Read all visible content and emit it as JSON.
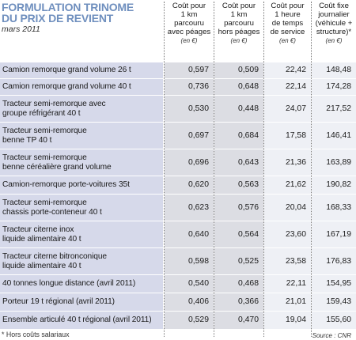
{
  "title": {
    "line1": "FORMULATION TRINOME",
    "line2": "DU PRIX DE REVIENT",
    "date": "mars 2011"
  },
  "columns": [
    {
      "l1": "Coût pour",
      "l2": "1 km",
      "l3": "parcouru",
      "l4": "avec péages",
      "unit": "(en €)"
    },
    {
      "l1": "Coût pour",
      "l2": "1 km",
      "l3": "parcouru",
      "l4": "hors péages",
      "unit": "(en €)"
    },
    {
      "l1": "Coût pour",
      "l2": "1 heure",
      "l3": "de temps",
      "l4": "de service",
      "unit": "(en €)"
    },
    {
      "l1": "Coût fixe",
      "l2": "journalier",
      "l3": "(véhicule +",
      "l4": "structure)*",
      "unit": "(en €)"
    }
  ],
  "rows": [
    {
      "label1": "Camion remorque grand volume 26 t",
      "label2": "",
      "v1": "0,597",
      "v2": "0,509",
      "v3": "22,42",
      "v4": "148,48"
    },
    {
      "label1": "Camion remorque grand volume 40 t",
      "label2": "",
      "v1": "0,736",
      "v2": "0,648",
      "v3": "22,14",
      "v4": "174,28"
    },
    {
      "label1": "Tracteur semi-remorque avec",
      "label2": "groupe réfrigérant 40 t",
      "v1": "0,530",
      "v2": "0,448",
      "v3": "24,07",
      "v4": "217,52"
    },
    {
      "label1": "Tracteur semi-remorque",
      "label2": "benne TP 40 t",
      "v1": "0,697",
      "v2": "0,684",
      "v3": "17,58",
      "v4": "146,41"
    },
    {
      "label1": "Tracteur semi-remorque",
      "label2": "benne céréalière grand volume",
      "v1": "0,696",
      "v2": "0,643",
      "v3": "21,36",
      "v4": "163,89"
    },
    {
      "label1": "Camion-remorque porte-voitures 35t",
      "label2": "",
      "v1": "0,620",
      "v2": "0,563",
      "v3": "21,62",
      "v4": "190,82"
    },
    {
      "label1": "Tracteur semi-remorque",
      "label2": "chassis porte-conteneur 40 t",
      "v1": "0,623",
      "v2": "0,576",
      "v3": "20,04",
      "v4": "168,33"
    },
    {
      "label1": "Tracteur citerne inox",
      "label2": "liquide alimentaire 40 t",
      "v1": "0,640",
      "v2": "0,564",
      "v3": "23,60",
      "v4": "167,19"
    },
    {
      "label1": "Tracteur citerne bitronconique",
      "label2": "liquide alimentaire 40 t",
      "v1": "0,598",
      "v2": "0,525",
      "v3": "23,58",
      "v4": "176,83"
    },
    {
      "label1": "40 tonnes longue distance (avril 2011)",
      "label2": "",
      "v1": "0,540",
      "v2": "0,468",
      "v3": "22,11",
      "v4": "154,95"
    },
    {
      "label1": "Porteur 19 t régional (avril 2011)",
      "label2": "",
      "v1": "0,406",
      "v2": "0,366",
      "v3": "21,01",
      "v4": "159,43"
    },
    {
      "label1": "Ensemble articulé 40 t régional (avril 2011)",
      "label2": "",
      "v1": "0,529",
      "v2": "0,470",
      "v3": "19,04",
      "v4": "155,60"
    }
  ],
  "footnote": "* Hors coûts salariaux",
  "source": "Source : CNR"
}
